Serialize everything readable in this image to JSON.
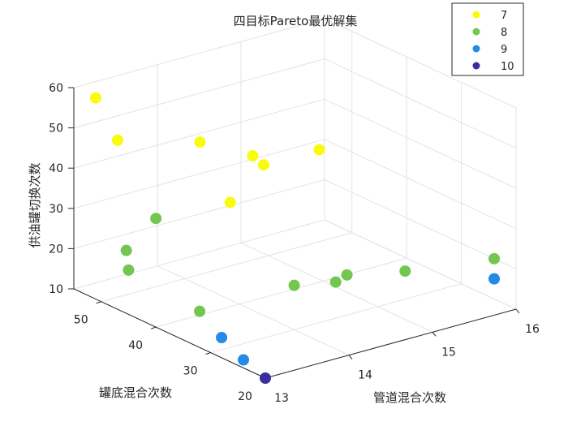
{
  "chart_data": {
    "type": "scatter",
    "projection": "3d",
    "title": "四目标Pareto最优解集",
    "xlabel": "管道混合次数",
    "ylabel": "罐底混合次数",
    "zlabel": "供油罐切换次数",
    "xlim": [
      13,
      16
    ],
    "ylim": [
      20,
      55
    ],
    "zlim": [
      10,
      60
    ],
    "xticks": [
      "13",
      "14",
      "15",
      "16"
    ],
    "yticks": [
      "20",
      "30",
      "40",
      "50"
    ],
    "zticks": [
      "10",
      "20",
      "30",
      "40",
      "50",
      "60"
    ],
    "grid": true,
    "legend_position": "top-right",
    "legend_labels": [
      "7",
      "8",
      "9",
      "10"
    ],
    "series": [
      {
        "name": "7",
        "color": "#f9fb0e",
        "points": [
          {
            "x": 13.0,
            "y": 51,
            "z": 60
          },
          {
            "x": 13.0,
            "y": 47,
            "z": 52
          },
          {
            "x": 13.2,
            "y": 35,
            "z": 58
          },
          {
            "x": 13.7,
            "y": 33,
            "z": 53
          },
          {
            "x": 13.7,
            "y": 31,
            "z": 52
          },
          {
            "x": 14.3,
            "y": 30,
            "z": 53
          },
          {
            "x": 13.3,
            "y": 31,
            "z": 45
          }
        ]
      },
      {
        "name": "8",
        "color": "#73c650",
        "points": [
          {
            "x": 13.0,
            "y": 40,
            "z": 37
          },
          {
            "x": 13.3,
            "y": 50,
            "z": 21
          },
          {
            "x": 13.0,
            "y": 45,
            "z": 21
          },
          {
            "x": 13.0,
            "y": 32,
            "z": 19
          },
          {
            "x": 14.0,
            "y": 30,
            "z": 21
          },
          {
            "x": 14.3,
            "y": 27,
            "z": 22
          },
          {
            "x": 14.5,
            "y": 28,
            "z": 22
          },
          {
            "x": 15.0,
            "y": 25,
            "z": 22
          },
          {
            "x": 16.0,
            "y": 24,
            "z": 20
          }
        ]
      },
      {
        "name": "9",
        "color": "#238be6",
        "points": [
          {
            "x": 13.0,
            "y": 28,
            "z": 15
          },
          {
            "x": 13.0,
            "y": 24,
            "z": 12
          },
          {
            "x": 16.0,
            "y": 24,
            "z": 15
          }
        ]
      },
      {
        "name": "10",
        "color": "#3b2fa0",
        "points": [
          {
            "x": 13.0,
            "y": 20,
            "z": 10
          }
        ]
      }
    ]
  }
}
